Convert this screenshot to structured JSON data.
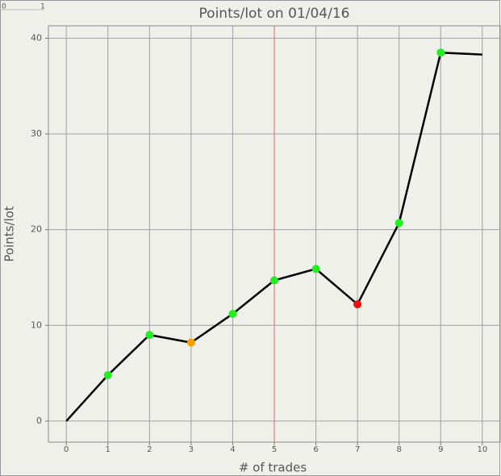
{
  "corner_labels": [
    "0",
    "1"
  ],
  "chart_data": {
    "type": "line",
    "title": "Points/lot on 01/04/16",
    "x_label": "# of trades",
    "y_label": "Points/lot",
    "x": [
      0,
      1,
      2,
      3,
      4,
      5,
      6,
      7,
      8,
      9,
      10
    ],
    "series": [
      {
        "color": "#000000",
        "values": [
          0,
          4.8,
          9.0,
          8.2,
          11.2,
          14.7,
          15.9,
          12.2,
          20.7,
          38.5,
          38.3
        ],
        "marker_colors": [
          null,
          "#22ee22",
          "#22ee22",
          "#f5a000",
          "#22ee22",
          "#22ee22",
          "#22ee22",
          "#ee1111",
          "#22ee22",
          "#22ee22",
          null
        ]
      }
    ],
    "xlim": [
      -0.43,
      10.43
    ],
    "ylim": [
      -2.2,
      41.3
    ],
    "xticks": [
      0,
      1,
      2,
      3,
      4,
      5,
      6,
      7,
      8,
      9,
      10
    ],
    "yticks": [
      0,
      10,
      20,
      30,
      40
    ],
    "grid": true,
    "grid_color": "#a0a0a0",
    "highlight_x": 5,
    "highlight_color": "#e06666"
  }
}
